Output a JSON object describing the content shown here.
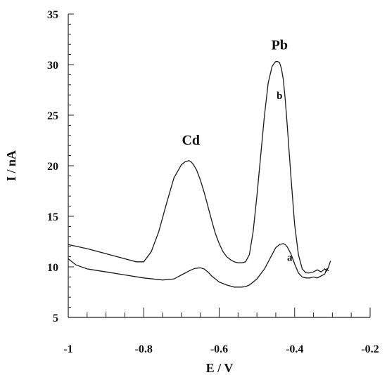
{
  "chart_data": {
    "type": "line",
    "xlabel": "E / V",
    "ylabel": "I / nA",
    "xlim": [
      -1,
      -0.2
    ],
    "ylim": [
      5,
      35
    ],
    "x_ticks": [
      -1,
      -0.8,
      -0.6,
      -0.4,
      -0.2
    ],
    "x_tick_labels": [
      "-1",
      "-0.8",
      "-0.6",
      "-0.4",
      "-0.2"
    ],
    "y_ticks": [
      5,
      10,
      15,
      20,
      25,
      30,
      35
    ],
    "y_tick_labels": [
      "5",
      "10",
      "15",
      "20",
      "25",
      "30",
      "35"
    ],
    "grid": false,
    "annotations": [
      {
        "text": "Cd",
        "x": -0.675,
        "y": 22.1,
        "kind": "peak"
      },
      {
        "text": "Pb",
        "x": -0.44,
        "y": 31.5,
        "kind": "peak"
      },
      {
        "text": "b",
        "x": -0.44,
        "y": 26.6,
        "kind": "curve"
      },
      {
        "text": "a",
        "x": -0.413,
        "y": 10.6,
        "kind": "curve"
      }
    ],
    "series": [
      {
        "name": "b",
        "x": [
          -1.0,
          -0.95,
          -0.9,
          -0.85,
          -0.82,
          -0.8,
          -0.78,
          -0.76,
          -0.74,
          -0.72,
          -0.7,
          -0.69,
          -0.68,
          -0.675,
          -0.67,
          -0.66,
          -0.65,
          -0.64,
          -0.63,
          -0.62,
          -0.61,
          -0.6,
          -0.59,
          -0.58,
          -0.57,
          -0.56,
          -0.55,
          -0.54,
          -0.53,
          -0.52,
          -0.51,
          -0.5,
          -0.49,
          -0.48,
          -0.47,
          -0.46,
          -0.455,
          -0.45,
          -0.445,
          -0.44,
          -0.435,
          -0.43,
          -0.425,
          -0.42,
          -0.41,
          -0.4,
          -0.39,
          -0.38,
          -0.37,
          -0.36,
          -0.35,
          -0.34,
          -0.33,
          -0.32,
          -0.315,
          -0.31,
          -0.305
        ],
        "y": [
          12.2,
          11.8,
          11.3,
          10.8,
          10.5,
          10.5,
          11.5,
          13.5,
          16.2,
          18.8,
          20.1,
          20.4,
          20.5,
          20.4,
          20.2,
          19.6,
          18.6,
          17.4,
          16.0,
          14.6,
          13.3,
          12.3,
          11.5,
          11.0,
          10.7,
          10.5,
          10.4,
          10.4,
          10.5,
          11.2,
          13.5,
          17.0,
          21.0,
          25.0,
          28.2,
          29.8,
          30.1,
          30.3,
          30.3,
          30.2,
          29.6,
          28.5,
          26.6,
          24.2,
          19.0,
          14.2,
          11.2,
          9.8,
          9.4,
          9.4,
          9.5,
          9.7,
          9.5,
          9.8,
          9.6,
          10.0,
          10.6
        ]
      },
      {
        "name": "a",
        "x": [
          -1.0,
          -0.98,
          -0.95,
          -0.9,
          -0.85,
          -0.8,
          -0.75,
          -0.72,
          -0.7,
          -0.68,
          -0.665,
          -0.65,
          -0.64,
          -0.63,
          -0.62,
          -0.6,
          -0.58,
          -0.56,
          -0.54,
          -0.53,
          -0.52,
          -0.5,
          -0.48,
          -0.46,
          -0.45,
          -0.44,
          -0.43,
          -0.425,
          -0.42,
          -0.41,
          -0.4,
          -0.39,
          -0.38,
          -0.37,
          -0.36,
          -0.35,
          -0.34,
          -0.33,
          -0.32,
          -0.315,
          -0.31
        ],
        "y": [
          10.8,
          10.2,
          9.8,
          9.5,
          9.2,
          8.9,
          8.7,
          8.8,
          9.2,
          9.6,
          9.85,
          9.9,
          9.8,
          9.5,
          9.1,
          8.5,
          8.2,
          8.0,
          8.0,
          8.05,
          8.2,
          8.8,
          9.8,
          11.2,
          11.9,
          12.2,
          12.3,
          12.2,
          12.0,
          11.3,
          10.3,
          9.4,
          9.0,
          8.9,
          8.9,
          9.0,
          8.9,
          9.1,
          9.3,
          9.8,
          9.6
        ]
      }
    ]
  }
}
